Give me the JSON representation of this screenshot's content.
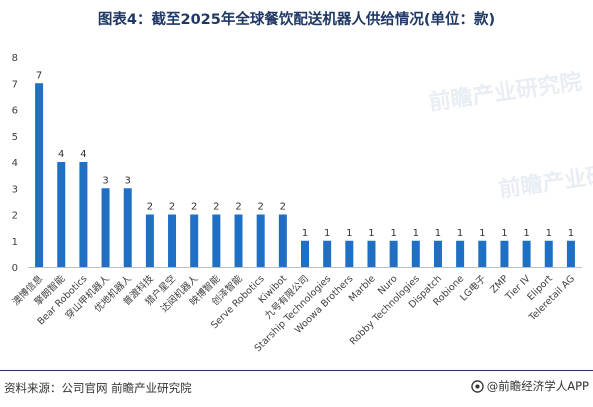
{
  "title": "图表4：截至2025年全球餐饮配送机器人供给情况(单位：款)",
  "source": "资料来源：公司官网 前瞻产业研究院",
  "brand": "@前瞻经济学人APP",
  "watermarks": [
    "前瞻产业研究院",
    "前瞻产业研究院"
  ],
  "colors": {
    "bar": "#1f6fc5",
    "title": "#1f3864",
    "axis": "#bfbfbf",
    "text": "#404040"
  },
  "brand_icon": "qianzhan-logo-icon",
  "chart_data": {
    "type": "bar",
    "title": "图表4：截至2025年全球餐饮配送机器人供给情况(单位：款)",
    "xlabel": "",
    "ylabel": "",
    "ylim": [
      0,
      8
    ],
    "yticks": [
      0,
      1,
      2,
      3,
      4,
      5,
      6,
      7,
      8
    ],
    "grid": false,
    "categories": [
      "澳博信息",
      "擎朗智能",
      "Bear Robotics",
      "穿山甲机器人",
      "优地机器人",
      "普渡科技",
      "猎户星空",
      "达闼机器人",
      "映博智能",
      "创泽智能",
      "Serve Robotics",
      "Kiwibot",
      "九号有限公司",
      "Starship Technologies",
      "Woowa Brothers",
      "Marble",
      "Nuro",
      "Robby Technologies",
      "Dispatch",
      "Robione",
      "LG电子",
      "ZMP",
      "Tier IV",
      "Eliport",
      "Teleretail AG"
    ],
    "values": [
      7,
      4,
      4,
      3,
      3,
      2,
      2,
      2,
      2,
      2,
      2,
      2,
      1,
      1,
      1,
      1,
      1,
      1,
      1,
      1,
      1,
      1,
      1,
      1,
      1
    ]
  }
}
